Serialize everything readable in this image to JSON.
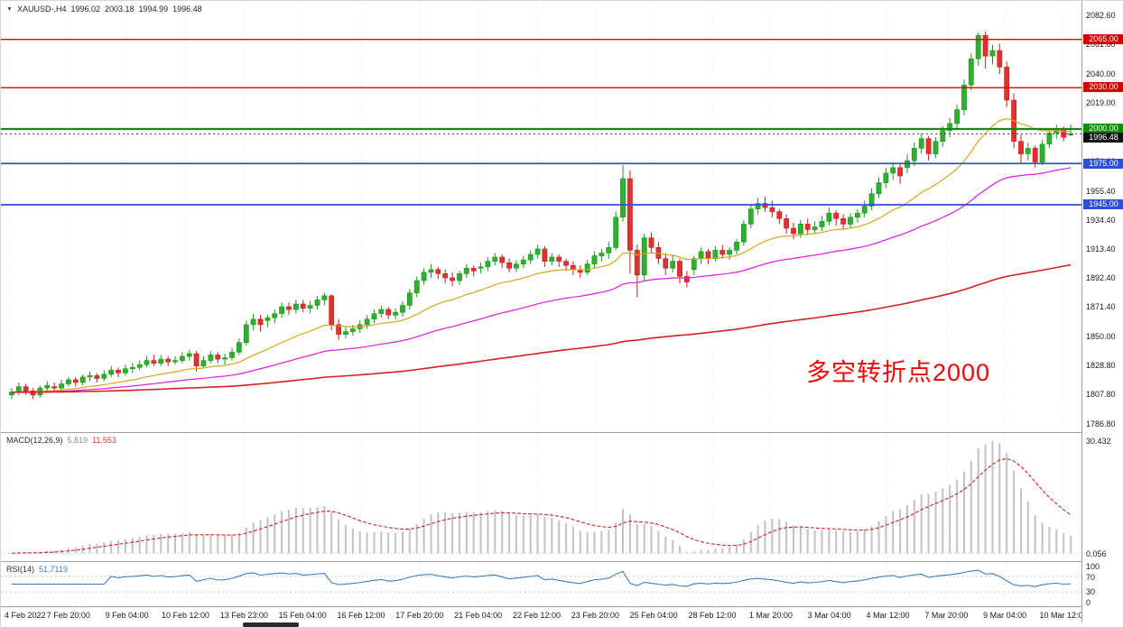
{
  "header": {
    "symbol": "XAUUSD-,H4",
    "open": "1996.02",
    "high": "2003.18",
    "low": "1994.99",
    "close": "1996.48"
  },
  "annotation": {
    "text": "多空转折点2000",
    "color": "#f00606"
  },
  "y_axis_labels": [
    "2082.60",
    "2061.60",
    "2040.00",
    "2019.00",
    "1997.80",
    "1976.60",
    "1955.40",
    "1934.40",
    "1913.40",
    "1892.40",
    "1871.40",
    "1850.00",
    "1828.80",
    "1807.80",
    "1786.80"
  ],
  "price_badges": [
    {
      "label": "2065.00",
      "price": 2065.0,
      "color": "#d40000"
    },
    {
      "label": "2030.00",
      "price": 2030.0,
      "color": "#d40000"
    },
    {
      "label": "2000.00",
      "price": 2000.0,
      "color": "#089000"
    },
    {
      "label": "1996.48",
      "price": 1996.48,
      "color": "#111111"
    },
    {
      "label": "1975.00",
      "price": 1975.0,
      "color": "#2f4fd4"
    },
    {
      "label": "1945.00",
      "price": 1945.0,
      "color": "#2f4fd4"
    }
  ],
  "macd": {
    "label": "MACD(12,26,9)",
    "main_value": "5.819",
    "signal_value": "11.553",
    "axis_top": "30.432",
    "axis_bottom": "0.056"
  },
  "rsi": {
    "label": "RSI(14)",
    "value": "51.7119",
    "axis_labels": [
      "100",
      "70",
      "30",
      "0"
    ],
    "levels": [
      70,
      30
    ]
  },
  "chart_data": {
    "type": "candlestick",
    "title": "XAUUSD-,H4",
    "symbol": "XAUUSD-",
    "timeframe": "H4",
    "current_bar": {
      "open": 1996.02,
      "high": 2003.18,
      "low": 1994.99,
      "close": 1996.48
    },
    "y_range": [
      1780,
      2093
    ],
    "x_labels": [
      "4 Feb 2022",
      "7 Feb 20:00",
      "9 Feb 04:00",
      "10 Feb 12:00",
      "13 Feb 23:00",
      "15 Feb 04:00",
      "16 Feb 12:00",
      "17 Feb 20:00",
      "21 Feb 04:00",
      "22 Feb 12:00",
      "23 Feb 20:00",
      "25 Feb 04:00",
      "28 Feb 12:00",
      "1 Mar 20:00",
      "3 Mar 04:00",
      "4 Mar 12:00",
      "7 Mar 20:00",
      "9 Mar 04:00",
      "10 Mar 12:00"
    ],
    "horizontal_lines": [
      {
        "price": 2065.0,
        "color": "#e00000",
        "style": "solid",
        "width": 1.4,
        "role": "resistance"
      },
      {
        "price": 2030.0,
        "color": "#e00000",
        "style": "solid",
        "width": 1.4,
        "role": "resistance"
      },
      {
        "price": 2000.0,
        "color": "#089000",
        "style": "solid",
        "width": 2.2,
        "role": "pivot"
      },
      {
        "price": 1996.48,
        "color": "#444444",
        "style": "dotted",
        "width": 1,
        "role": "current-price"
      },
      {
        "price": 1975.0,
        "color": "#2f4fd4",
        "style": "solid",
        "width": 1.8,
        "role": "support"
      },
      {
        "price": 1945.0,
        "color": "#2f4fd4",
        "style": "solid",
        "width": 1.8,
        "role": "support"
      }
    ],
    "moving_averages": [
      {
        "name": "fast",
        "period": 21,
        "color": "#d9a51e"
      },
      {
        "name": "medium",
        "period": 55,
        "color": "#e018e0"
      },
      {
        "name": "slow",
        "period": 200,
        "color": "#d42020"
      }
    ],
    "indicators": [
      {
        "name": "MACD",
        "settings": "12,26,9",
        "current_main": 5.819,
        "current_signal": 11.553,
        "axis_max": 30.432
      },
      {
        "name": "RSI",
        "settings": "14",
        "current": 51.7119,
        "levels": [
          70,
          30
        ]
      }
    ],
    "candles": [
      [
        1807,
        1812,
        1804,
        1809
      ],
      [
        1809,
        1816,
        1807,
        1813
      ],
      [
        1813,
        1815,
        1807,
        1810
      ],
      [
        1810,
        1812,
        1804,
        1807
      ],
      [
        1807,
        1814,
        1805,
        1812
      ],
      [
        1812,
        1817,
        1810,
        1814
      ],
      [
        1813,
        1816,
        1809,
        1812
      ],
      [
        1812,
        1818,
        1810,
        1815
      ],
      [
        1815,
        1820,
        1813,
        1818
      ],
      [
        1818,
        1820,
        1813,
        1816
      ],
      [
        1816,
        1822,
        1814,
        1820
      ],
      [
        1820,
        1824,
        1817,
        1821
      ],
      [
        1821,
        1823,
        1816,
        1819
      ],
      [
        1819,
        1825,
        1817,
        1822
      ],
      [
        1822,
        1828,
        1820,
        1825
      ],
      [
        1825,
        1827,
        1820,
        1823
      ],
      [
        1823,
        1829,
        1821,
        1826
      ],
      [
        1826,
        1830,
        1823,
        1827
      ],
      [
        1827,
        1832,
        1825,
        1829
      ],
      [
        1829,
        1835,
        1827,
        1832
      ],
      [
        1832,
        1836,
        1828,
        1830
      ],
      [
        1830,
        1836,
        1828,
        1833
      ],
      [
        1833,
        1835,
        1828,
        1831
      ],
      [
        1831,
        1835,
        1829,
        1832
      ],
      [
        1832,
        1838,
        1830,
        1835
      ],
      [
        1835,
        1840,
        1832,
        1837
      ],
      [
        1837,
        1839,
        1824,
        1828
      ],
      [
        1828,
        1835,
        1826,
        1832
      ],
      [
        1832,
        1839,
        1830,
        1836
      ],
      [
        1836,
        1838,
        1830,
        1833
      ],
      [
        1833,
        1837,
        1829,
        1834
      ],
      [
        1834,
        1841,
        1832,
        1838
      ],
      [
        1838,
        1848,
        1836,
        1845
      ],
      [
        1845,
        1861,
        1843,
        1858
      ],
      [
        1858,
        1866,
        1854,
        1862
      ],
      [
        1862,
        1865,
        1853,
        1858
      ],
      [
        1861,
        1865,
        1856,
        1863
      ],
      [
        1863,
        1869,
        1859,
        1866
      ],
      [
        1866,
        1874,
        1863,
        1871
      ],
      [
        1871,
        1874,
        1865,
        1869
      ],
      [
        1869,
        1876,
        1866,
        1873
      ],
      [
        1873,
        1876,
        1867,
        1870
      ],
      [
        1870,
        1875,
        1866,
        1872
      ],
      [
        1872,
        1879,
        1869,
        1876
      ],
      [
        1876,
        1881,
        1872,
        1879
      ],
      [
        1879,
        1880,
        1854,
        1858
      ],
      [
        1858,
        1862,
        1847,
        1851
      ],
      [
        1851,
        1857,
        1848,
        1853
      ],
      [
        1853,
        1858,
        1850,
        1855
      ],
      [
        1855,
        1861,
        1852,
        1858
      ],
      [
        1858,
        1865,
        1855,
        1862
      ],
      [
        1862,
        1869,
        1859,
        1866
      ],
      [
        1866,
        1872,
        1863,
        1869
      ],
      [
        1869,
        1871,
        1862,
        1865
      ],
      [
        1865,
        1870,
        1862,
        1867
      ],
      [
        1867,
        1875,
        1864,
        1872
      ],
      [
        1872,
        1884,
        1869,
        1881
      ],
      [
        1881,
        1893,
        1878,
        1890
      ],
      [
        1890,
        1899,
        1887,
        1896
      ],
      [
        1896,
        1902,
        1892,
        1898
      ],
      [
        1898,
        1900,
        1891,
        1895
      ],
      [
        1895,
        1898,
        1888,
        1892
      ],
      [
        1892,
        1896,
        1886,
        1890
      ],
      [
        1890,
        1897,
        1887,
        1895
      ],
      [
        1895,
        1902,
        1892,
        1899
      ],
      [
        1899,
        1901,
        1893,
        1897
      ],
      [
        1899,
        1903,
        1895,
        1900
      ],
      [
        1900,
        1907,
        1897,
        1904
      ],
      [
        1904,
        1910,
        1901,
        1907
      ],
      [
        1907,
        1909,
        1899,
        1903
      ],
      [
        1903,
        1906,
        1896,
        1899
      ],
      [
        1899,
        1905,
        1896,
        1902
      ],
      [
        1902,
        1908,
        1899,
        1905
      ],
      [
        1905,
        1912,
        1902,
        1909
      ],
      [
        1909,
        1916,
        1906,
        1913
      ],
      [
        1913,
        1915,
        1900,
        1904
      ],
      [
        1904,
        1910,
        1901,
        1907
      ],
      [
        1907,
        1909,
        1900,
        1904
      ],
      [
        1904,
        1906,
        1897,
        1901
      ],
      [
        1901,
        1904,
        1894,
        1898
      ],
      [
        1898,
        1901,
        1892,
        1896
      ],
      [
        1896,
        1905,
        1894,
        1902
      ],
      [
        1902,
        1911,
        1899,
        1908
      ],
      [
        1908,
        1913,
        1904,
        1910
      ],
      [
        1910,
        1918,
        1906,
        1914
      ],
      [
        1914,
        1940,
        1912,
        1936
      ],
      [
        1936,
        1974,
        1933,
        1964
      ],
      [
        1964,
        1970,
        1895,
        1912
      ],
      [
        1912,
        1916,
        1878,
        1894
      ],
      [
        1894,
        1924,
        1890,
        1921
      ],
      [
        1921,
        1925,
        1910,
        1914
      ],
      [
        1914,
        1918,
        1902,
        1906
      ],
      [
        1906,
        1910,
        1894,
        1899
      ],
      [
        1899,
        1908,
        1896,
        1904
      ],
      [
        1904,
        1906,
        1888,
        1893
      ],
      [
        1893,
        1897,
        1885,
        1889
      ],
      [
        1898,
        1908,
        1894,
        1906
      ],
      [
        1906,
        1914,
        1902,
        1911
      ],
      [
        1911,
        1913,
        1902,
        1906
      ],
      [
        1906,
        1915,
        1904,
        1912
      ],
      [
        1912,
        1916,
        1906,
        1909
      ],
      [
        1909,
        1914,
        1905,
        1912
      ],
      [
        1912,
        1920,
        1909,
        1918
      ],
      [
        1918,
        1934,
        1915,
        1931
      ],
      [
        1931,
        1945,
        1928,
        1942
      ],
      [
        1942,
        1950,
        1938,
        1946
      ],
      [
        1946,
        1951,
        1940,
        1943
      ],
      [
        1943,
        1948,
        1936,
        1940
      ],
      [
        1940,
        1942,
        1931,
        1935
      ],
      [
        1935,
        1938,
        1924,
        1928
      ],
      [
        1928,
        1932,
        1920,
        1924
      ],
      [
        1924,
        1934,
        1921,
        1931
      ],
      [
        1931,
        1935,
        1923,
        1927
      ],
      [
        1927,
        1933,
        1924,
        1929
      ],
      [
        1929,
        1937,
        1926,
        1933
      ],
      [
        1933,
        1943,
        1930,
        1939
      ],
      [
        1939,
        1941,
        1930,
        1935
      ],
      [
        1935,
        1938,
        1927,
        1931
      ],
      [
        1931,
        1939,
        1928,
        1936
      ],
      [
        1936,
        1942,
        1932,
        1939
      ],
      [
        1939,
        1948,
        1936,
        1944
      ],
      [
        1944,
        1957,
        1941,
        1953
      ],
      [
        1953,
        1965,
        1950,
        1961
      ],
      [
        1961,
        1972,
        1957,
        1968
      ],
      [
        1968,
        1976,
        1963,
        1972
      ],
      [
        1972,
        1975,
        1960,
        1966
      ],
      [
        1972,
        1982,
        1968,
        1977
      ],
      [
        1977,
        1990,
        1973,
        1986
      ],
      [
        1986,
        1997,
        1982,
        1993
      ],
      [
        1993,
        1995,
        1977,
        1982
      ],
      [
        1982,
        1994,
        1979,
        1991
      ],
      [
        1991,
        2002,
        1987,
        1999
      ],
      [
        1999,
        2008,
        1994,
        2004
      ],
      [
        2004,
        2018,
        2000,
        2014
      ],
      [
        2014,
        2036,
        2010,
        2032
      ],
      [
        2032,
        2055,
        2028,
        2051
      ],
      [
        2051,
        2070,
        2046,
        2068
      ],
      [
        2068,
        2071,
        2044,
        2053
      ],
      [
        2053,
        2061,
        2047,
        2057
      ],
      [
        2057,
        2062,
        2040,
        2045
      ],
      [
        2045,
        2049,
        2016,
        2021
      ],
      [
        2021,
        2026,
        1986,
        1991
      ],
      [
        1991,
        1996,
        1975,
        1982
      ],
      [
        1982,
        1990,
        1977,
        1986
      ],
      [
        1986,
        1988,
        1972,
        1976
      ],
      [
        1976,
        1992,
        1974,
        1989
      ],
      [
        1989,
        2000,
        1986,
        1997
      ],
      [
        1997,
        2003,
        1993,
        2000
      ],
      [
        2000,
        2002,
        1991,
        1994
      ],
      [
        1996,
        2003.2,
        1995,
        1996.5
      ]
    ]
  }
}
